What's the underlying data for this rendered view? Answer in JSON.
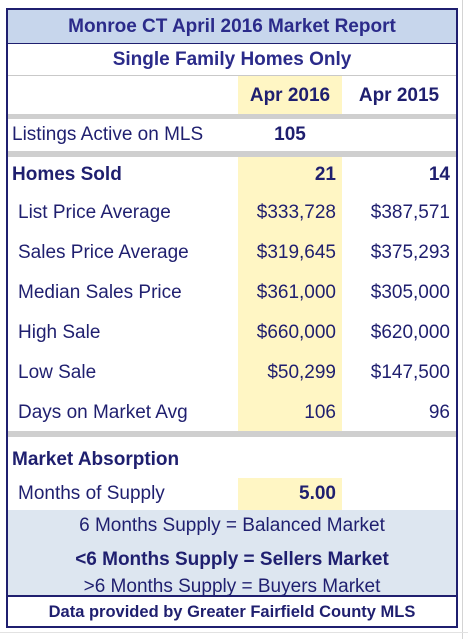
{
  "report": {
    "title": "Monroe CT April  2016 Market Report",
    "subtitle": "Single Family Homes Only",
    "columns": {
      "current": "Apr 2016",
      "prior": "Apr 2015"
    },
    "listings": {
      "label": "Listings Active on MLS",
      "current": "105",
      "prior": ""
    },
    "homes_sold": {
      "label": "Homes Sold",
      "current": "21",
      "prior": "14"
    },
    "metrics": [
      {
        "label": "List Price Average",
        "current": "$333,728",
        "prior": "$387,571"
      },
      {
        "label": "Sales Price Average",
        "current": "$319,645",
        "prior": "$375,293"
      },
      {
        "label": "Median Sales Price",
        "current": "$361,000",
        "prior": "$305,000"
      },
      {
        "label": "High Sale",
        "current": "$660,000",
        "prior": "$620,000"
      },
      {
        "label": "Low Sale",
        "current": "$50,299",
        "prior": "$147,500"
      },
      {
        "label": "Days on Market Avg",
        "current": "106",
        "prior": "96"
      }
    ],
    "absorption": {
      "heading": "Market Absorption",
      "label": "Months of Supply",
      "current": "5.00"
    },
    "legend": [
      "6 Months Supply = Balanced Market",
      "<6 Months Supply = Sellers Market",
      ">6 Months Supply = Buyers Market"
    ],
    "footer": "Data provided by Greater Fairfield County MLS"
  },
  "colors": {
    "title_bg": "#c7d6ec",
    "highlight": "#fff6c4",
    "text": "#1f1f6f",
    "info_bg": "#dde6f0"
  }
}
